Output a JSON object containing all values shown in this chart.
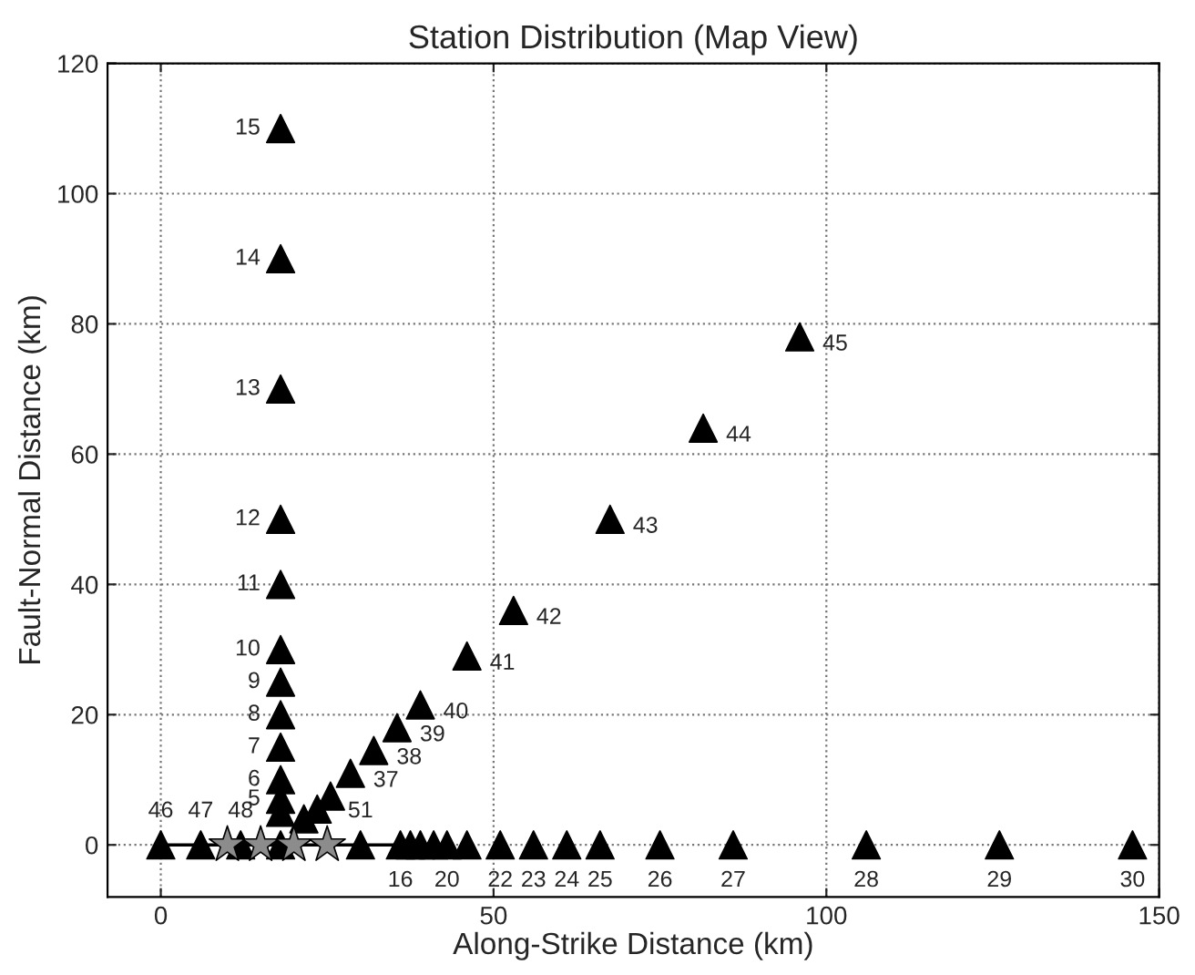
{
  "chart_data": {
    "type": "scatter",
    "title": "Station Distribution (Map View)",
    "xlabel": "Along-Strike Distance (km)",
    "ylabel": "Fault-Normal Distance (km)",
    "xlim": [
      -8,
      150
    ],
    "ylim": [
      -8,
      120
    ],
    "xticks": [
      0,
      50,
      100,
      150
    ],
    "yticks": [
      0,
      20,
      40,
      60,
      80,
      100,
      120
    ],
    "grid": true,
    "series": [
      {
        "type": "line",
        "color": "#000000",
        "marker": "none",
        "line_style": "solid",
        "x": [
          0,
          36
        ],
        "values": [
          0,
          0
        ]
      },
      {
        "color": "#000000",
        "marker": "triangle",
        "x": [
          18,
          18,
          18,
          18,
          18,
          18,
          18,
          18,
          18,
          18,
          18,
          18,
          18,
          36,
          37.5,
          39,
          41,
          43,
          46,
          51,
          56,
          61,
          66,
          75,
          86,
          106,
          126,
          146,
          28.5,
          32,
          35.5,
          39,
          46,
          53,
          67.5,
          81.5,
          96,
          0,
          6,
          12,
          30,
          21.5,
          23.5,
          25.5
        ],
        "values": [
          5,
          7,
          10,
          15,
          20,
          25,
          30,
          40,
          50,
          70,
          90,
          110,
          0,
          0,
          0,
          0,
          0,
          0,
          0,
          0,
          0,
          0,
          0,
          0,
          0,
          0,
          0,
          0,
          11,
          14.5,
          18,
          21.5,
          29,
          36,
          50,
          64,
          78,
          0,
          0,
          0,
          0,
          4,
          5.5,
          7.5
        ]
      },
      {
        "color": "#8c8c8c",
        "marker": "star",
        "x": [
          10,
          15,
          20,
          25
        ],
        "values": [
          0,
          0,
          0,
          0
        ]
      }
    ],
    "annotations": [
      {
        "text": "5",
        "x": 18,
        "y": 7
      },
      {
        "text": "6",
        "x": 18,
        "y": 10
      },
      {
        "text": "7",
        "x": 18,
        "y": 15
      },
      {
        "text": "8",
        "x": 18,
        "y": 20
      },
      {
        "text": "9",
        "x": 18,
        "y": 25
      },
      {
        "text": "10",
        "x": 18,
        "y": 30
      },
      {
        "text": "11",
        "x": 18,
        "y": 40
      },
      {
        "text": "12",
        "x": 18,
        "y": 50
      },
      {
        "text": "13",
        "x": 18,
        "y": 70
      },
      {
        "text": "14",
        "x": 18,
        "y": 90
      },
      {
        "text": "15",
        "x": 18,
        "y": 110
      },
      {
        "text": "16",
        "x": 36,
        "y": 0
      },
      {
        "text": "20",
        "x": 43,
        "y": 0
      },
      {
        "text": "22",
        "x": 51,
        "y": 0
      },
      {
        "text": "23",
        "x": 56,
        "y": 0
      },
      {
        "text": "24",
        "x": 61,
        "y": 0
      },
      {
        "text": "25",
        "x": 66,
        "y": 0
      },
      {
        "text": "26",
        "x": 75,
        "y": 0
      },
      {
        "text": "27",
        "x": 86,
        "y": 0
      },
      {
        "text": "28",
        "x": 106,
        "y": 0
      },
      {
        "text": "29",
        "x": 126,
        "y": 0
      },
      {
        "text": "30",
        "x": 146,
        "y": 0
      },
      {
        "text": "37",
        "x": 28.5,
        "y": 11
      },
      {
        "text": "38",
        "x": 32,
        "y": 14.5
      },
      {
        "text": "39",
        "x": 35.5,
        "y": 18
      },
      {
        "text": "40",
        "x": 39,
        "y": 21.5
      },
      {
        "text": "41",
        "x": 46,
        "y": 29
      },
      {
        "text": "42",
        "x": 53,
        "y": 36
      },
      {
        "text": "43",
        "x": 67.5,
        "y": 50
      },
      {
        "text": "44",
        "x": 81.5,
        "y": 64
      },
      {
        "text": "45",
        "x": 96,
        "y": 78
      },
      {
        "text": "46",
        "x": 0,
        "y": 0
      },
      {
        "text": "47",
        "x": 6,
        "y": 0
      },
      {
        "text": "48",
        "x": 12,
        "y": 0
      },
      {
        "text": "51",
        "x": 30,
        "y": 0
      }
    ]
  }
}
